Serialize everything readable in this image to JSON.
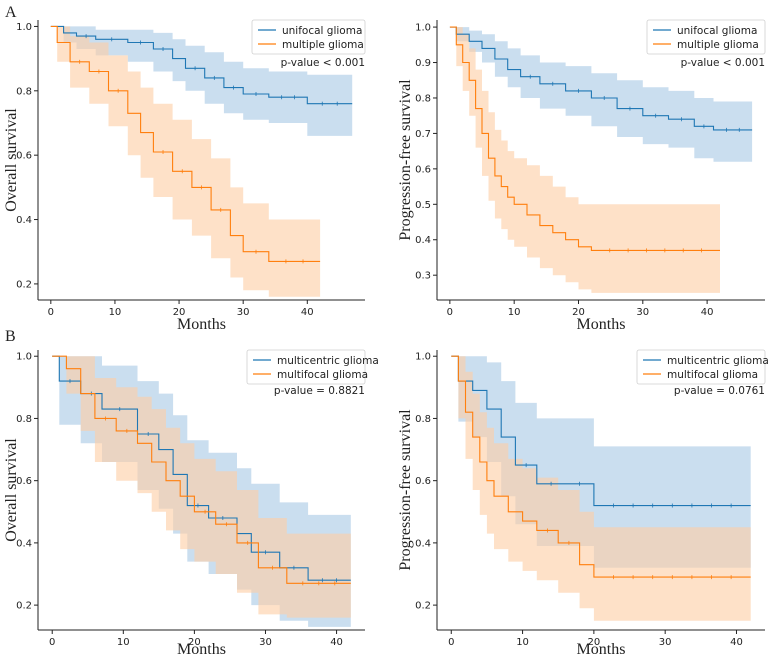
{
  "figure": {
    "panel_labels": [
      "A",
      "B"
    ]
  },
  "chart_data": [
    {
      "type": "line",
      "panel": "A",
      "xlabel": "Months",
      "ylabel": "Overall survival",
      "xlim": [
        -2,
        49
      ],
      "ylim": [
        0.15,
        1.02
      ],
      "xticks": [
        0,
        10,
        20,
        30,
        40
      ],
      "yticks": [
        0.2,
        0.4,
        0.6,
        0.8,
        1.0
      ],
      "ytick_labels": [
        "0.2",
        "0.4",
        "0.6",
        "0.8",
        "1.0"
      ],
      "legend": [
        "unifocal glioma",
        "multiple glioma"
      ],
      "annotation": "p-value < 0.001",
      "series": [
        {
          "name": "unifocal glioma",
          "color": "#1f77b4",
          "x": [
            0,
            2,
            4,
            7,
            12,
            16,
            19,
            21,
            24,
            27,
            30,
            34,
            40,
            47
          ],
          "y": [
            1.0,
            0.98,
            0.97,
            0.96,
            0.95,
            0.93,
            0.9,
            0.87,
            0.84,
            0.81,
            0.79,
            0.78,
            0.76,
            0.76
          ],
          "lower": [
            1.0,
            0.95,
            0.93,
            0.91,
            0.89,
            0.86,
            0.83,
            0.8,
            0.76,
            0.73,
            0.71,
            0.7,
            0.66,
            0.66
          ],
          "upper": [
            1.0,
            1.0,
            1.0,
            0.99,
            0.99,
            0.98,
            0.96,
            0.94,
            0.92,
            0.89,
            0.87,
            0.86,
            0.85,
            0.85
          ]
        },
        {
          "name": "multiple glioma",
          "color": "#ff7f0e",
          "x": [
            0,
            1,
            3,
            6,
            9,
            12,
            14,
            16,
            19,
            22,
            25,
            28,
            30,
            34,
            42
          ],
          "y": [
            1.0,
            0.95,
            0.89,
            0.86,
            0.8,
            0.73,
            0.67,
            0.61,
            0.55,
            0.5,
            0.43,
            0.35,
            0.3,
            0.27,
            0.27
          ],
          "lower": [
            1.0,
            0.89,
            0.81,
            0.76,
            0.69,
            0.6,
            0.53,
            0.47,
            0.4,
            0.35,
            0.28,
            0.22,
            0.18,
            0.16,
            0.16
          ],
          "upper": [
            1.0,
            1.0,
            0.97,
            0.95,
            0.91,
            0.86,
            0.81,
            0.76,
            0.71,
            0.65,
            0.59,
            0.5,
            0.45,
            0.4,
            0.4
          ]
        }
      ]
    },
    {
      "type": "line",
      "panel": "A",
      "xlabel": "Months",
      "ylabel": "Progression-free survival",
      "xlim": [
        -2,
        49
      ],
      "ylim": [
        0.23,
        1.02
      ],
      "xticks": [
        0,
        10,
        20,
        30,
        40
      ],
      "yticks": [
        0.3,
        0.4,
        0.5,
        0.6,
        0.7,
        0.8,
        0.9,
        1.0
      ],
      "ytick_labels": [
        "0.3",
        "0.4",
        "0.5",
        "0.6",
        "0.7",
        "0.8",
        "0.9",
        "1.0"
      ],
      "legend": [
        "unifocal glioma",
        "multiple glioma"
      ],
      "annotation": "p-value < 0.001",
      "series": [
        {
          "name": "unifocal glioma",
          "color": "#1f77b4",
          "x": [
            0,
            1,
            3,
            5,
            7,
            9,
            11,
            14,
            18,
            22,
            26,
            30,
            34,
            38,
            41,
            47
          ],
          "y": [
            1.0,
            0.98,
            0.96,
            0.94,
            0.91,
            0.88,
            0.86,
            0.84,
            0.82,
            0.8,
            0.77,
            0.75,
            0.74,
            0.72,
            0.71,
            0.71
          ],
          "lower": [
            1.0,
            0.96,
            0.93,
            0.9,
            0.86,
            0.83,
            0.8,
            0.77,
            0.75,
            0.72,
            0.69,
            0.67,
            0.66,
            0.63,
            0.62,
            0.62
          ],
          "upper": [
            1.0,
            1.0,
            0.99,
            0.98,
            0.96,
            0.94,
            0.92,
            0.9,
            0.89,
            0.87,
            0.85,
            0.83,
            0.82,
            0.8,
            0.79,
            0.79
          ]
        },
        {
          "name": "multiple glioma",
          "color": "#ff7f0e",
          "x": [
            0,
            1,
            2,
            3,
            4,
            5,
            6,
            7,
            8,
            9,
            10,
            12,
            14,
            16,
            18,
            20,
            22,
            42
          ],
          "y": [
            1.0,
            0.95,
            0.9,
            0.85,
            0.77,
            0.7,
            0.63,
            0.58,
            0.55,
            0.52,
            0.5,
            0.47,
            0.44,
            0.42,
            0.4,
            0.38,
            0.37,
            0.37
          ],
          "lower": [
            1.0,
            0.89,
            0.82,
            0.75,
            0.66,
            0.58,
            0.51,
            0.46,
            0.43,
            0.4,
            0.38,
            0.35,
            0.32,
            0.3,
            0.28,
            0.26,
            0.25,
            0.25
          ],
          "upper": [
            1.0,
            1.0,
            0.98,
            0.94,
            0.88,
            0.82,
            0.76,
            0.71,
            0.68,
            0.65,
            0.63,
            0.61,
            0.58,
            0.55,
            0.52,
            0.5,
            0.5,
            0.5
          ]
        }
      ]
    },
    {
      "type": "line",
      "panel": "B",
      "xlabel": "Months",
      "ylabel": "Overall survival",
      "xlim": [
        -2,
        44
      ],
      "ylim": [
        0.12,
        1.02
      ],
      "xticks": [
        0,
        10,
        20,
        30,
        40
      ],
      "yticks": [
        0.2,
        0.4,
        0.6,
        0.8,
        1.0
      ],
      "ytick_labels": [
        "0.2",
        "0.4",
        "0.6",
        "0.8",
        "1.0"
      ],
      "legend": [
        "multicentric glioma",
        "multifocal glioma"
      ],
      "annotation": "p-value = 0.8821",
      "series": [
        {
          "name": "multicentric glioma",
          "color": "#1f77b4",
          "x": [
            0,
            1,
            4,
            7,
            12,
            15,
            17,
            19,
            22,
            26,
            28,
            32,
            36,
            42
          ],
          "y": [
            1.0,
            0.92,
            0.88,
            0.83,
            0.75,
            0.7,
            0.62,
            0.52,
            0.48,
            0.43,
            0.37,
            0.32,
            0.28,
            0.28
          ],
          "lower": [
            1.0,
            0.78,
            0.72,
            0.66,
            0.57,
            0.51,
            0.43,
            0.34,
            0.3,
            0.25,
            0.2,
            0.15,
            0.13,
            0.13
          ],
          "upper": [
            1.0,
            1.0,
            1.0,
            0.97,
            0.92,
            0.88,
            0.81,
            0.73,
            0.69,
            0.64,
            0.59,
            0.53,
            0.49,
            0.49
          ]
        },
        {
          "name": "multifocal glioma",
          "color": "#ff7f0e",
          "x": [
            0,
            2,
            4,
            6,
            9,
            12,
            14,
            16,
            18,
            20,
            23,
            26,
            29,
            33,
            42
          ],
          "y": [
            1.0,
            0.96,
            0.88,
            0.8,
            0.76,
            0.72,
            0.66,
            0.6,
            0.55,
            0.5,
            0.46,
            0.4,
            0.32,
            0.27,
            0.27
          ],
          "lower": [
            1.0,
            0.88,
            0.76,
            0.66,
            0.6,
            0.56,
            0.5,
            0.44,
            0.38,
            0.34,
            0.3,
            0.24,
            0.17,
            0.16,
            0.16
          ],
          "upper": [
            1.0,
            1.0,
            1.0,
            0.93,
            0.9,
            0.87,
            0.83,
            0.77,
            0.72,
            0.67,
            0.63,
            0.57,
            0.48,
            0.43,
            0.43
          ]
        }
      ]
    },
    {
      "type": "line",
      "panel": "B",
      "xlabel": "Months",
      "ylabel": "Progression-free survival",
      "xlim": [
        -2,
        44
      ],
      "ylim": [
        0.12,
        1.02
      ],
      "xticks": [
        0,
        10,
        20,
        30,
        40
      ],
      "yticks": [
        0.2,
        0.4,
        0.6,
        0.8,
        1.0
      ],
      "ytick_labels": [
        "0.2",
        "0.4",
        "0.6",
        "0.8",
        "1.0"
      ],
      "legend": [
        "multicentric glioma",
        "multifocal glioma"
      ],
      "annotation": "p-value = 0.0761",
      "series": [
        {
          "name": "multicentric glioma",
          "color": "#1f77b4",
          "x": [
            0,
            1,
            3,
            5,
            7,
            9,
            12,
            16,
            20,
            42
          ],
          "y": [
            1.0,
            0.92,
            0.89,
            0.83,
            0.74,
            0.65,
            0.59,
            0.59,
            0.52,
            0.52
          ],
          "lower": [
            1.0,
            0.79,
            0.74,
            0.66,
            0.55,
            0.46,
            0.39,
            0.39,
            0.32,
            0.32
          ],
          "upper": [
            1.0,
            1.0,
            1.0,
            0.98,
            0.92,
            0.85,
            0.8,
            0.8,
            0.71,
            0.71
          ]
        },
        {
          "name": "multifocal glioma",
          "color": "#ff7f0e",
          "x": [
            0,
            1,
            2,
            3,
            4,
            5,
            6,
            8,
            10,
            12,
            15,
            18,
            20,
            42
          ],
          "y": [
            1.0,
            0.92,
            0.82,
            0.74,
            0.66,
            0.6,
            0.55,
            0.5,
            0.47,
            0.44,
            0.4,
            0.33,
            0.29,
            0.29
          ],
          "lower": [
            1.0,
            0.8,
            0.67,
            0.57,
            0.49,
            0.43,
            0.38,
            0.34,
            0.31,
            0.28,
            0.24,
            0.19,
            0.15,
            0.15
          ],
          "upper": [
            1.0,
            1.0,
            0.95,
            0.88,
            0.82,
            0.77,
            0.72,
            0.67,
            0.64,
            0.61,
            0.57,
            0.5,
            0.45,
            0.45
          ]
        }
      ]
    }
  ]
}
